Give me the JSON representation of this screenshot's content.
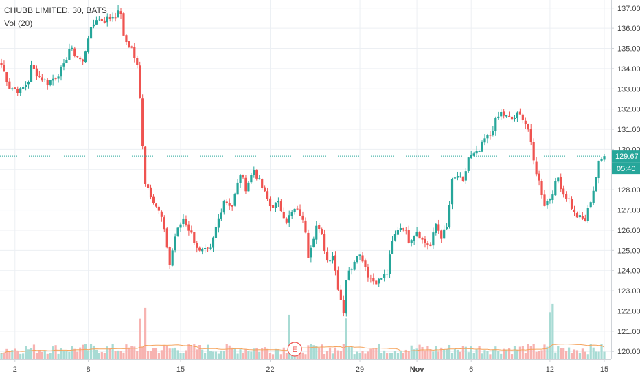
{
  "header": {
    "title": "CHUBB LIMITED, 30, BATS",
    "volume_label": "Vol (20)"
  },
  "colors": {
    "up": "#26a69a",
    "down": "#ef5350",
    "up_vol": "#a8dbd4",
    "down_vol": "#f7b3b1",
    "vol_ma": "#f5a35c",
    "grid": "#eceff3",
    "price_line": "#26a69a",
    "axis_text": "#444444"
  },
  "chart_data": {
    "type": "candlestick",
    "symbol": "CHUBB LIMITED",
    "interval": "30",
    "exchange": "BATS",
    "y_axis": {
      "position": "right",
      "range": [
        119.6,
        137.4
      ],
      "ticks": [
        120.0,
        121.0,
        122.0,
        123.0,
        124.0,
        125.0,
        126.0,
        127.0,
        128.0,
        129.0,
        130.0,
        131.0,
        132.0,
        133.0,
        134.0,
        135.0,
        136.0,
        137.0
      ],
      "tick_labels": [
        "120.00",
        "121.00",
        "122.00",
        "123.00",
        "124.00",
        "125.00",
        "126.00",
        "127.00",
        "128.00",
        "129.00",
        "130.00",
        "131.00",
        "132.00",
        "133.00",
        "134.00",
        "135.00",
        "136.00",
        "137.00"
      ]
    },
    "x_axis": {
      "labels": [
        "2",
        "8",
        "15",
        "22",
        "29",
        "Nov",
        "6",
        "12",
        "15"
      ],
      "label_bar_index": [
        5,
        32,
        66,
        99,
        132,
        153,
        173,
        202,
        222
      ]
    },
    "last_price": {
      "value": 129.67,
      "label": "129.67",
      "countdown": "05:40"
    },
    "earnings_marker": {
      "label": "E",
      "bar_index": 106
    },
    "grid": true,
    "ohlc_anchors": [
      [
        0,
        134.2
      ],
      [
        3,
        133.1
      ],
      [
        5,
        133.0
      ],
      [
        7,
        132.9
      ],
      [
        10,
        133.4
      ],
      [
        11,
        134.1
      ],
      [
        14,
        133.6
      ],
      [
        17,
        133.3
      ],
      [
        20,
        133.6
      ],
      [
        23,
        134.1
      ],
      [
        25,
        135.0
      ],
      [
        28,
        134.6
      ],
      [
        30,
        134.3
      ],
      [
        32,
        135.6
      ],
      [
        35,
        136.5
      ],
      [
        38,
        136.4
      ],
      [
        41,
        136.6
      ],
      [
        44,
        136.8
      ],
      [
        45,
        135.5
      ],
      [
        48,
        135.0
      ],
      [
        50,
        134.1
      ],
      [
        51,
        132.5
      ],
      [
        52,
        130.3
      ],
      [
        53,
        128.4
      ],
      [
        56,
        127.5
      ],
      [
        59,
        126.6
      ],
      [
        61,
        125.2
      ],
      [
        62,
        124.3
      ],
      [
        64,
        125.7
      ],
      [
        67,
        126.6
      ],
      [
        70,
        125.8
      ],
      [
        73,
        124.9
      ],
      [
        77,
        125.0
      ],
      [
        79,
        126.1
      ],
      [
        82,
        127.5
      ],
      [
        85,
        127.2
      ],
      [
        88,
        128.8
      ],
      [
        90,
        128.1
      ],
      [
        93,
        129.0
      ],
      [
        96,
        128.1
      ],
      [
        99,
        127.2
      ],
      [
        102,
        127.3
      ],
      [
        105,
        126.5
      ],
      [
        108,
        127.0
      ],
      [
        110,
        126.8
      ],
      [
        112,
        126.0
      ],
      [
        113,
        124.8
      ],
      [
        116,
        126.2
      ],
      [
        118,
        125.7
      ],
      [
        120,
        124.5
      ],
      [
        122,
        124.8
      ],
      [
        124,
        123.2
      ],
      [
        126,
        122.0
      ],
      [
        127,
        123.6
      ],
      [
        129,
        124.2
      ],
      [
        131,
        124.9
      ],
      [
        133,
        124.6
      ],
      [
        135,
        123.8
      ],
      [
        137,
        123.5
      ],
      [
        139,
        123.5
      ],
      [
        142,
        123.9
      ],
      [
        144,
        125.4
      ],
      [
        146,
        126.1
      ],
      [
        148,
        126.2
      ],
      [
        150,
        125.5
      ],
      [
        153,
        126.0
      ],
      [
        155,
        125.5
      ],
      [
        158,
        125.2
      ],
      [
        160,
        126.3
      ],
      [
        162,
        125.7
      ],
      [
        164,
        126.1
      ],
      [
        166,
        128.4
      ],
      [
        168,
        128.7
      ],
      [
        170,
        128.3
      ],
      [
        172,
        129.6
      ],
      [
        174,
        129.7
      ],
      [
        176,
        129.9
      ],
      [
        178,
        130.5
      ],
      [
        180,
        130.7
      ],
      [
        182,
        131.4
      ],
      [
        184,
        131.8
      ],
      [
        186,
        131.6
      ],
      [
        188,
        131.5
      ],
      [
        190,
        131.7
      ],
      [
        192,
        131.6
      ],
      [
        194,
        131.0
      ],
      [
        196,
        129.4
      ],
      [
        198,
        128.4
      ],
      [
        200,
        127.3
      ],
      [
        202,
        127.6
      ],
      [
        205,
        128.6
      ],
      [
        207,
        127.8
      ],
      [
        209,
        127.5
      ],
      [
        211,
        126.8
      ],
      [
        213,
        126.6
      ],
      [
        215,
        126.5
      ],
      [
        218,
        128.0
      ],
      [
        220,
        129.3
      ],
      [
        222,
        129.67
      ]
    ],
    "total_bars": 223,
    "volume": {
      "bars_count": 223,
      "typical_relative": 0.35,
      "spike_bar_indices": [
        51,
        53,
        106,
        127,
        202,
        203
      ],
      "ma_period": 20
    }
  }
}
